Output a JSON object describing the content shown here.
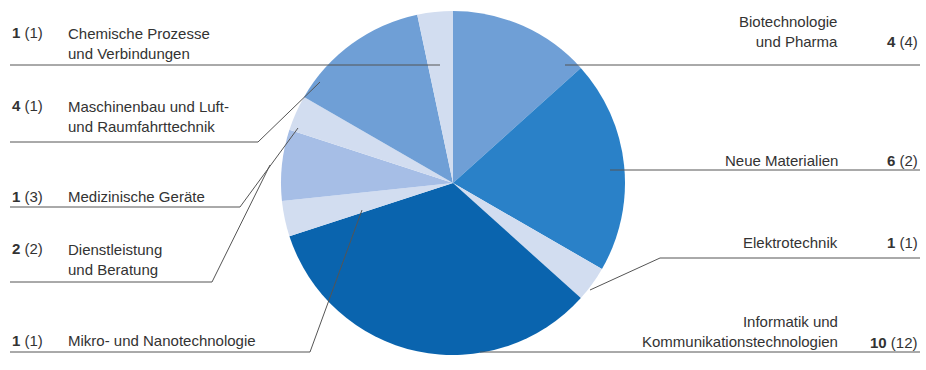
{
  "chart_data": {
    "type": "pie",
    "categories": [
      "Biotechnologie\nund Pharma",
      "Neue Materialien",
      "Elektrotechnik",
      "Informatik und\nKommunikationstechnologien",
      "Mikro- und Nanotechnologie",
      "Dienstleistung\nund Beratung",
      "Medizinische Geräte",
      "Maschinenbau und Luft-\nund Raumfahrttechnik",
      "Chemische Prozesse\nund Verbindungen"
    ],
    "values": [
      4,
      6,
      1,
      10,
      1,
      2,
      1,
      4,
      1
    ],
    "previous_values": [
      4,
      2,
      1,
      12,
      1,
      2,
      3,
      1,
      1
    ],
    "colors": [
      "#6f9fd6",
      "#2a81c8",
      "#d2ddf0",
      "#0a64ae",
      "#d2ddf0",
      "#a6bee6",
      "#d2ddf0",
      "#6f9fd6",
      "#d2ddf0"
    ],
    "data_labels": true
  }
}
